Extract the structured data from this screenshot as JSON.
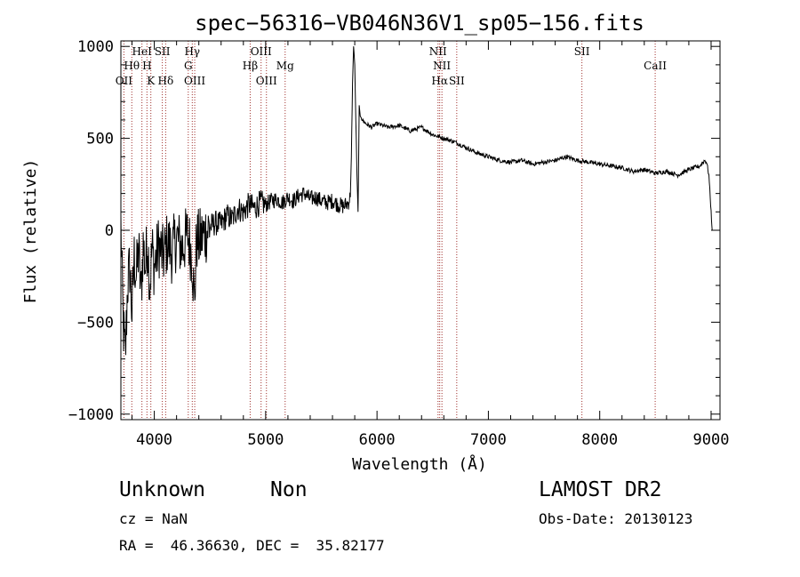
{
  "chart_data": {
    "type": "line",
    "title": "spec−56316−VB046N36V1_sp05−156.fits",
    "xlabel": "Wavelength (Å)",
    "ylabel": "Flux (relative)",
    "xlim": [
      3700,
      9080
    ],
    "ylim": [
      -1030,
      1030
    ],
    "x_ticks": [
      4000,
      5000,
      6000,
      7000,
      8000,
      9000
    ],
    "y_ticks": [
      -1000,
      -500,
      0,
      500,
      1000
    ],
    "y_tick_labels": [
      "−1000",
      "−500",
      "0",
      "500",
      "1000"
    ],
    "grid": false,
    "line_color": "#000000",
    "marker_color": "#a0302c",
    "lines": [
      {
        "name": "OII",
        "wavelength": 3727,
        "row": 4
      },
      {
        "name": "Hθ",
        "wavelength": 3798,
        "row": 2
      },
      {
        "name": "HeI",
        "wavelength": 3889,
        "row": 1
      },
      {
        "name": "H",
        "wavelength": 3934,
        "row": 2
      },
      {
        "name": "K",
        "wavelength": 3969,
        "row": 4
      },
      {
        "name": "SII",
        "wavelength": 4072,
        "row": 1
      },
      {
        "name": "Hδ",
        "wavelength": 4102,
        "row": 4
      },
      {
        "name": "Hγ",
        "wavelength": 4341,
        "row": 1
      },
      {
        "name": "G",
        "wavelength": 4305,
        "row": 2
      },
      {
        "name": "OIII",
        "wavelength": 4363,
        "row": 4
      },
      {
        "name": "OIII",
        "wavelength": 4959,
        "row": 1
      },
      {
        "name": "Hβ",
        "wavelength": 4861,
        "row": 2
      },
      {
        "name": "OIII",
        "wavelength": 5007,
        "row": 4
      },
      {
        "name": "Mg",
        "wavelength": 5175,
        "row": 2
      },
      {
        "name": "NII",
        "wavelength": 6548,
        "row": 1
      },
      {
        "name": "NII",
        "wavelength": 6583,
        "row": 2
      },
      {
        "name": "Hα",
        "wavelength": 6563,
        "row": 4
      },
      {
        "name": "SII",
        "wavelength": 6716,
        "row": 4
      },
      {
        "name": "SII",
        "wavelength": 7840,
        "row": 1
      },
      {
        "name": "CaII",
        "wavelength": 8498,
        "row": 2
      }
    ],
    "series": [
      {
        "name": "",
        "x": [
          3700,
          3720,
          3740,
          3760,
          3780,
          3800,
          3820,
          3840,
          3860,
          3880,
          3900,
          3920,
          3940,
          3960,
          3980,
          4000,
          4040,
          4080,
          4120,
          4160,
          4200,
          4250,
          4300,
          4340,
          4360,
          4380,
          4400,
          4450,
          4500,
          4550,
          4600,
          4650,
          4700,
          4750,
          4800,
          4850,
          4900,
          4950,
          5000,
          5050,
          5100,
          5150,
          5200,
          5250,
          5300,
          5350,
          5400,
          5450,
          5500,
          5550,
          5600,
          5650,
          5700,
          5740,
          5760,
          5770,
          5780,
          5790,
          5800,
          5810,
          5820,
          5830,
          5840,
          5850,
          5870,
          5900,
          5950,
          6000,
          6100,
          6200,
          6300,
          6400,
          6500,
          6600,
          6700,
          6800,
          6900,
          7000,
          7100,
          7200,
          7300,
          7400,
          7500,
          7600,
          7700,
          7800,
          7900,
          8000,
          8100,
          8200,
          8300,
          8400,
          8500,
          8600,
          8700,
          8800,
          8900,
          8940,
          8960,
          8980,
          9000,
          9010
        ],
        "y": [
          30,
          -500,
          -700,
          -300,
          -200,
          -450,
          -150,
          -250,
          -100,
          -350,
          -80,
          -200,
          -50,
          -300,
          -100,
          -200,
          -80,
          -150,
          -60,
          -120,
          -40,
          -100,
          -20,
          -150,
          -400,
          -50,
          -60,
          -20,
          20,
          40,
          30,
          80,
          60,
          120,
          100,
          140,
          120,
          150,
          140,
          160,
          170,
          150,
          180,
          160,
          190,
          200,
          170,
          180,
          160,
          150,
          160,
          140,
          130,
          150,
          180,
          400,
          800,
          1000,
          900,
          600,
          300,
          100,
          680,
          620,
          600,
          580,
          560,
          580,
          560,
          570,
          540,
          560,
          520,
          500,
          480,
          450,
          420,
          400,
          380,
          370,
          380,
          360,
          370,
          380,
          400,
          380,
          370,
          360,
          350,
          340,
          320,
          330,
          310,
          320,
          300,
          330,
          350,
          380,
          370,
          300,
          100,
          0
        ]
      }
    ]
  },
  "info": {
    "class": "Unknown",
    "subclass": "Non",
    "survey": "LAMOST DR2",
    "cz": "cz = NaN",
    "obs_date": "Obs-Date: 20130123",
    "coords": "RA =  46.36630, DEC =  35.82177"
  }
}
